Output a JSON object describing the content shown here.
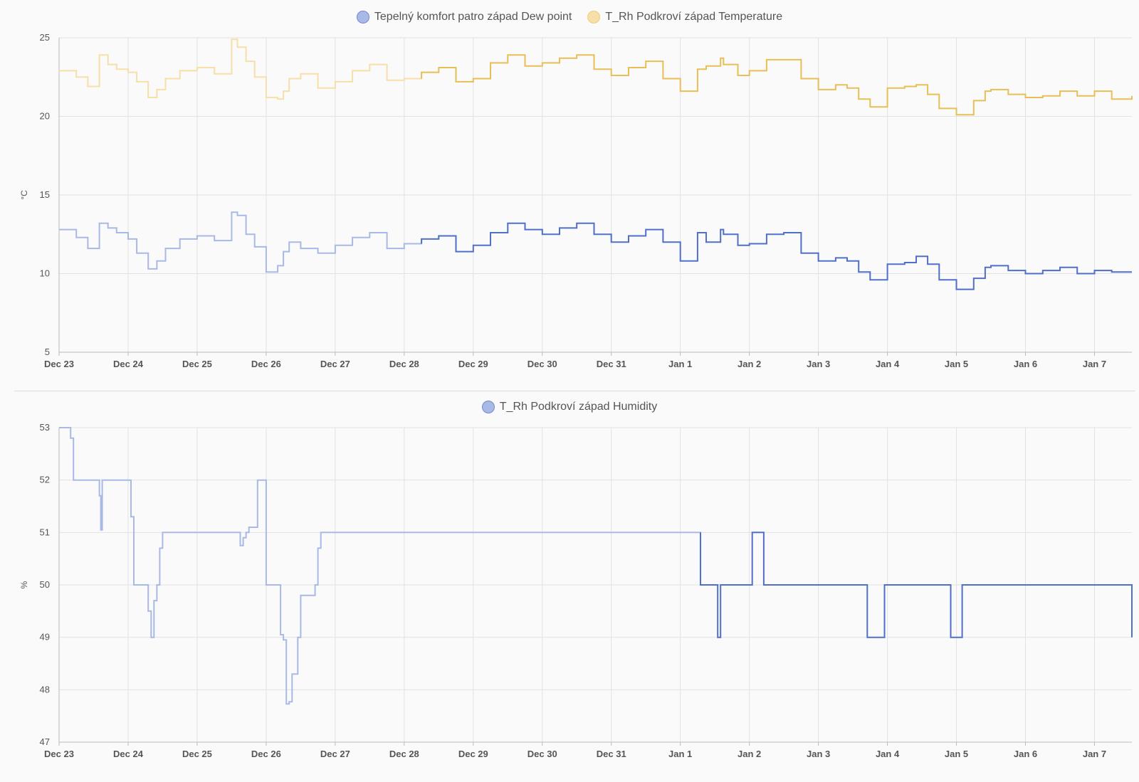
{
  "chart_data": [
    {
      "type": "line",
      "ylabel": "°C",
      "ylim": [
        5,
        25
      ],
      "yticks": [
        5,
        10,
        15,
        20,
        25
      ],
      "x_range": [
        "2023-12-23",
        "2024-01-07 13:00"
      ],
      "xticks": [
        "Dec 23",
        "Dec 24",
        "Dec 25",
        "Dec 26",
        "Dec 27",
        "Dec 28",
        "Dec 29",
        "Dec 30",
        "Dec 31",
        "Jan 1",
        "Jan 2",
        "Jan 3",
        "Jan 4",
        "Jan 5",
        "Jan 6",
        "Jan 7"
      ],
      "grid": true,
      "legend_position": "top-center",
      "series": [
        {
          "name": "Tepelný komfort patro západ Dew point",
          "color": "#4f6fc9",
          "faded_color": "#a9b9e6",
          "faded_until": "2023-12-28 06:00",
          "x": [
            "2023-12-23 00:00",
            "2023-12-23 06:00",
            "2023-12-23 10:00",
            "2023-12-23 14:00",
            "2023-12-23 17:00",
            "2023-12-23 20:00",
            "2023-12-24 00:00",
            "2023-12-24 03:00",
            "2023-12-24 07:00",
            "2023-12-24 10:00",
            "2023-12-24 13:00",
            "2023-12-24 18:00",
            "2023-12-25 00:00",
            "2023-12-25 06:00",
            "2023-12-25 12:00",
            "2023-12-25 14:00",
            "2023-12-25 17:00",
            "2023-12-25 20:00",
            "2023-12-26 00:00",
            "2023-12-26 04:00",
            "2023-12-26 06:00",
            "2023-12-26 08:00",
            "2023-12-26 12:00",
            "2023-12-26 18:00",
            "2023-12-27 00:00",
            "2023-12-27 06:00",
            "2023-12-27 12:00",
            "2023-12-27 18:00",
            "2023-12-28 00:00",
            "2023-12-28 06:00",
            "2023-12-28 12:00",
            "2023-12-28 18:00",
            "2023-12-29 00:00",
            "2023-12-29 06:00",
            "2023-12-29 12:00",
            "2023-12-29 18:00",
            "2023-12-30 00:00",
            "2023-12-30 06:00",
            "2023-12-30 12:00",
            "2023-12-30 18:00",
            "2023-12-31 00:00",
            "2023-12-31 06:00",
            "2023-12-31 12:00",
            "2023-12-31 18:00",
            "2024-01-01 00:00",
            "2024-01-01 06:00",
            "2024-01-01 09:00",
            "2024-01-01 14:00",
            "2024-01-01 15:00",
            "2024-01-01 20:00",
            "2024-01-02 00:00",
            "2024-01-02 06:00",
            "2024-01-02 12:00",
            "2024-01-02 18:00",
            "2024-01-03 00:00",
            "2024-01-03 06:00",
            "2024-01-03 10:00",
            "2024-01-03 14:00",
            "2024-01-03 18:00",
            "2024-01-04 00:00",
            "2024-01-04 06:00",
            "2024-01-04 10:00",
            "2024-01-04 14:00",
            "2024-01-04 18:00",
            "2024-01-05 00:00",
            "2024-01-05 06:00",
            "2024-01-05 10:00",
            "2024-01-05 12:00",
            "2024-01-05 18:00",
            "2024-01-06 00:00",
            "2024-01-06 06:00",
            "2024-01-06 12:00",
            "2024-01-06 18:00",
            "2024-01-07 00:00",
            "2024-01-07 06:00",
            "2024-01-07 13:00"
          ],
          "y": [
            12.8,
            12.3,
            11.6,
            13.2,
            12.9,
            12.6,
            12.2,
            11.3,
            10.3,
            10.8,
            11.6,
            12.2,
            12.4,
            12.1,
            13.9,
            13.7,
            12.5,
            11.7,
            10.1,
            10.5,
            11.4,
            12.0,
            11.6,
            11.3,
            11.8,
            12.3,
            12.6,
            11.6,
            11.9,
            12.2,
            12.4,
            11.4,
            11.8,
            12.6,
            13.2,
            12.8,
            12.5,
            12.9,
            13.2,
            12.5,
            12.0,
            12.4,
            12.8,
            12.0,
            10.8,
            12.6,
            12.0,
            12.8,
            12.5,
            11.8,
            11.9,
            12.5,
            12.6,
            11.3,
            10.8,
            11.0,
            10.8,
            10.1,
            9.6,
            10.6,
            10.7,
            11.1,
            10.6,
            9.6,
            9.0,
            9.7,
            10.4,
            10.5,
            10.2,
            10.0,
            10.2,
            10.4,
            10.0,
            10.2,
            10.1,
            10.1
          ]
        },
        {
          "name": "T_Rh Podkroví západ Temperature",
          "color": "#e8bf57",
          "faded_color": "#f6dfa8",
          "faded_until": "2023-12-28 06:00",
          "x": [
            "2023-12-23 00:00",
            "2023-12-23 06:00",
            "2023-12-23 10:00",
            "2023-12-23 14:00",
            "2023-12-23 17:00",
            "2023-12-23 20:00",
            "2023-12-24 00:00",
            "2023-12-24 03:00",
            "2023-12-24 07:00",
            "2023-12-24 10:00",
            "2023-12-24 13:00",
            "2023-12-24 18:00",
            "2023-12-25 00:00",
            "2023-12-25 06:00",
            "2023-12-25 12:00",
            "2023-12-25 14:00",
            "2023-12-25 17:00",
            "2023-12-25 20:00",
            "2023-12-26 00:00",
            "2023-12-26 04:00",
            "2023-12-26 06:00",
            "2023-12-26 08:00",
            "2023-12-26 12:00",
            "2023-12-26 18:00",
            "2023-12-27 00:00",
            "2023-12-27 06:00",
            "2023-12-27 12:00",
            "2023-12-27 18:00",
            "2023-12-28 00:00",
            "2023-12-28 06:00",
            "2023-12-28 12:00",
            "2023-12-28 18:00",
            "2023-12-29 00:00",
            "2023-12-29 06:00",
            "2023-12-29 12:00",
            "2023-12-29 18:00",
            "2023-12-30 00:00",
            "2023-12-30 06:00",
            "2023-12-30 12:00",
            "2023-12-30 18:00",
            "2023-12-31 00:00",
            "2023-12-31 06:00",
            "2023-12-31 12:00",
            "2023-12-31 18:00",
            "2024-01-01 00:00",
            "2024-01-01 06:00",
            "2024-01-01 09:00",
            "2024-01-01 14:00",
            "2024-01-01 15:00",
            "2024-01-01 20:00",
            "2024-01-02 00:00",
            "2024-01-02 06:00",
            "2024-01-02 12:00",
            "2024-01-02 18:00",
            "2024-01-03 00:00",
            "2024-01-03 06:00",
            "2024-01-03 10:00",
            "2024-01-03 14:00",
            "2024-01-03 18:00",
            "2024-01-04 00:00",
            "2024-01-04 06:00",
            "2024-01-04 10:00",
            "2024-01-04 14:00",
            "2024-01-04 18:00",
            "2024-01-05 00:00",
            "2024-01-05 06:00",
            "2024-01-05 10:00",
            "2024-01-05 12:00",
            "2024-01-05 18:00",
            "2024-01-06 00:00",
            "2024-01-06 06:00",
            "2024-01-06 12:00",
            "2024-01-06 18:00",
            "2024-01-07 00:00",
            "2024-01-07 06:00",
            "2024-01-07 13:00"
          ],
          "y": [
            22.9,
            22.5,
            21.9,
            23.9,
            23.3,
            23.0,
            22.8,
            22.2,
            21.2,
            21.7,
            22.4,
            22.9,
            23.1,
            22.7,
            24.9,
            24.4,
            23.5,
            22.5,
            21.2,
            21.1,
            21.6,
            22.4,
            22.7,
            21.8,
            22.2,
            22.9,
            23.3,
            22.3,
            22.4,
            22.8,
            23.1,
            22.2,
            22.4,
            23.4,
            23.9,
            23.2,
            23.4,
            23.7,
            23.9,
            23.0,
            22.6,
            23.1,
            23.5,
            22.4,
            21.6,
            23.0,
            23.2,
            23.7,
            23.3,
            22.6,
            22.9,
            23.6,
            23.6,
            22.4,
            21.7,
            22.0,
            21.8,
            21.1,
            20.6,
            21.8,
            21.9,
            22.0,
            21.4,
            20.5,
            20.1,
            21.0,
            21.6,
            21.7,
            21.4,
            21.2,
            21.3,
            21.6,
            21.3,
            21.6,
            21.1,
            21.3
          ]
        }
      ]
    },
    {
      "type": "line",
      "ylabel": "%",
      "ylim": [
        47,
        53
      ],
      "yticks": [
        47,
        48,
        49,
        50,
        51,
        52,
        53
      ],
      "x_range": [
        "2023-12-23",
        "2024-01-07 13:00"
      ],
      "xticks": [
        "Dec 23",
        "Dec 24",
        "Dec 25",
        "Dec 26",
        "Dec 27",
        "Dec 28",
        "Dec 29",
        "Dec 30",
        "Dec 31",
        "Jan 1",
        "Jan 2",
        "Jan 3",
        "Jan 4",
        "Jan 5",
        "Jan 6",
        "Jan 7"
      ],
      "grid": true,
      "legend_position": "top-center",
      "series": [
        {
          "name": "T_Rh Podkroví západ Humidity",
          "color": "#4f6fc9",
          "faded_color": "#a9b9e6",
          "faded_until": "2024-01-01 07:00",
          "x": [
            "2023-12-23 00:00",
            "2023-12-23 04:00",
            "2023-12-23 05:00",
            "2023-12-23 13:00",
            "2023-12-23 14:00",
            "2023-12-23 14:30",
            "2023-12-23 15:00",
            "2023-12-24 00:30",
            "2023-12-24 01:00",
            "2023-12-24 02:00",
            "2023-12-24 06:00",
            "2023-12-24 07:00",
            "2023-12-24 08:00",
            "2023-12-24 09:00",
            "2023-12-24 10:00",
            "2023-12-24 11:00",
            "2023-12-24 12:00",
            "2023-12-25 14:00",
            "2023-12-25 15:00",
            "2023-12-25 16:00",
            "2023-12-25 17:00",
            "2023-12-25 18:00",
            "2023-12-25 21:00",
            "2023-12-26 00:00",
            "2023-12-26 04:00",
            "2023-12-26 05:00",
            "2023-12-26 06:00",
            "2023-12-26 07:00",
            "2023-12-26 08:00",
            "2023-12-26 09:00",
            "2023-12-26 11:00",
            "2023-12-26 12:00",
            "2023-12-26 17:00",
            "2023-12-26 18:00",
            "2023-12-26 19:00",
            "2024-01-01 07:00",
            "2024-01-01 13:00",
            "2024-01-01 14:00",
            "2024-01-02 01:00",
            "2024-01-02 05:00",
            "2024-01-03 11:00",
            "2024-01-03 17:00",
            "2024-01-03 23:00",
            "2024-01-04 22:00",
            "2024-01-05 02:00",
            "2024-01-07 13:00"
          ],
          "y": [
            53,
            52.8,
            52,
            52,
            51.7,
            51.05,
            52,
            52,
            51.3,
            50,
            50,
            49.5,
            49,
            49.7,
            50,
            50.7,
            51,
            51,
            50.75,
            50.9,
            51,
            51.1,
            52,
            50,
            50,
            49.05,
            48.95,
            47.73,
            47.77,
            48.3,
            49,
            49.8,
            50,
            50.7,
            51,
            50,
            49,
            50,
            51,
            50,
            50,
            49,
            50,
            49,
            50,
            49
          ]
        }
      ]
    }
  ]
}
